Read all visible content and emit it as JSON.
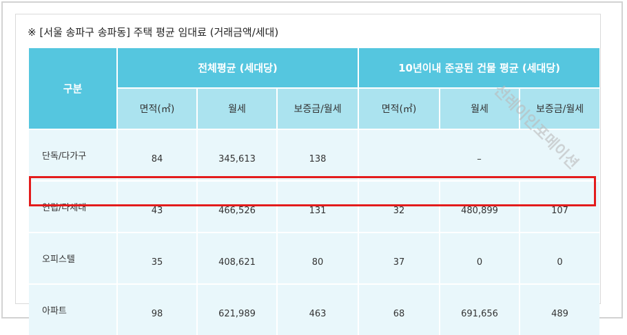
{
  "caption": "※  [서울 송파구 송파동]  주택 평균 임대료 (거래금액/세대)",
  "header": {
    "category": "구분",
    "group_all": "전체평균 (세대당)",
    "group_new": "10년이내 준공된 건물 평균 (세대당)",
    "sub": [
      "면적(㎡)",
      "월세",
      "보증금/월세",
      "면적(㎡)",
      "월세",
      "보증금/월세"
    ]
  },
  "rows": [
    {
      "label": "단독/다가구",
      "all": [
        "84",
        "345,613",
        "138"
      ],
      "new_merged": "–"
    },
    {
      "label": "연립/다세대",
      "all": [
        "43",
        "466,526",
        "131"
      ],
      "new": [
        "32",
        "480,899",
        "107"
      ]
    },
    {
      "label": "오피스텔",
      "all": [
        "35",
        "408,621",
        "80"
      ],
      "new": [
        "37",
        "0",
        "0"
      ]
    },
    {
      "label": "아파트",
      "all": [
        "98",
        "621,989",
        "463"
      ],
      "new": [
        "68",
        "691,656",
        "489"
      ]
    }
  ],
  "watermark": "선레이인포메이션",
  "colors": {
    "header": "#55c6df",
    "subheader": "#abe3ef",
    "row": "#e9f7fb",
    "highlight": "#e31b1b"
  }
}
